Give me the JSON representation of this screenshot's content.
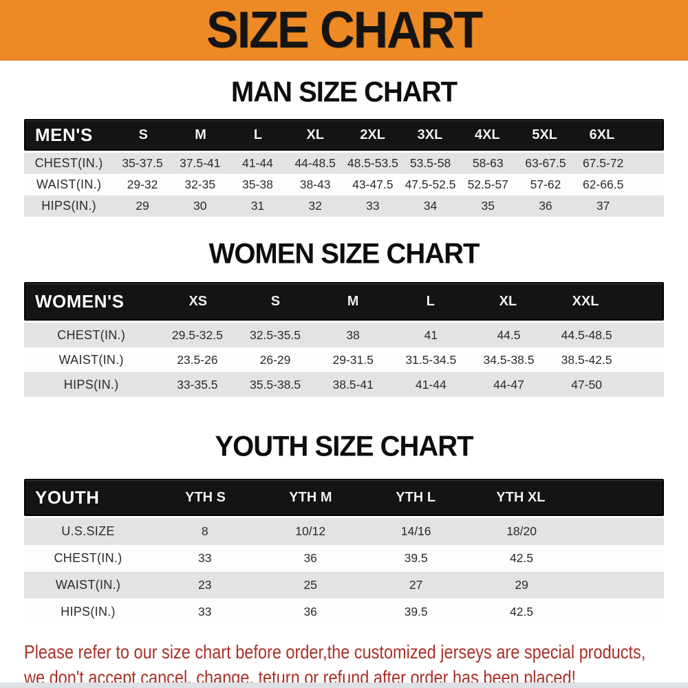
{
  "banner": {
    "title": "SIZE CHART",
    "bg_color": "#ee8a25"
  },
  "sections": [
    {
      "heading": "MAN SIZE CHART",
      "header_label": "MEN'S",
      "columns": [
        "S",
        "M",
        "L",
        "XL",
        "2XL",
        "3XL",
        "4XL",
        "5XL",
        "6XL"
      ],
      "rows": [
        {
          "label": "CHEST(IN.)",
          "values": [
            "35-37.5",
            "37.5-41",
            "41-44",
            "44-48.5",
            "48.5-53.5",
            "53.5-58",
            "58-63",
            "63-67.5",
            "67.5-72"
          ]
        },
        {
          "label": "WAIST(IN.)",
          "values": [
            "29-32",
            "32-35",
            "35-38",
            "38-43",
            "43-47.5",
            "47.5-52.5",
            "52.5-57",
            "57-62",
            "62-66.5"
          ]
        },
        {
          "label": "HIPS(IN.)",
          "values": [
            "29",
            "30",
            "31",
            "32",
            "33",
            "34",
            "35",
            "36",
            "37"
          ]
        }
      ]
    },
    {
      "heading": "WOMEN SIZE CHART",
      "header_label": "WOMEN'S",
      "columns": [
        "XS",
        "S",
        "M",
        "L",
        "XL",
        "XXL"
      ],
      "rows": [
        {
          "label": "CHEST(IN.)",
          "values": [
            "29.5-32.5",
            "32.5-35.5",
            "38",
            "41",
            "44.5",
            "44.5-48.5"
          ]
        },
        {
          "label": "WAIST(IN.)",
          "values": [
            "23.5-26",
            "26-29",
            "29-31.5",
            "31.5-34.5",
            "34.5-38.5",
            "38.5-42.5"
          ]
        },
        {
          "label": "HIPS(IN.)",
          "values": [
            "33-35.5",
            "35.5-38.5",
            "38.5-41",
            "41-44",
            "44-47",
            "47-50"
          ]
        }
      ]
    },
    {
      "heading": "YOUTH SIZE CHART",
      "header_label": "YOUTH",
      "columns": [
        "YTH S",
        "YTH M",
        "YTH L",
        "YTH XL"
      ],
      "rows": [
        {
          "label": "U.S.SIZE",
          "values": [
            "8",
            "10/12",
            "14/16",
            "18/20"
          ]
        },
        {
          "label": "CHEST(IN.)",
          "values": [
            "33",
            "36",
            "39.5",
            "42.5"
          ]
        },
        {
          "label": "WAIST(IN.)",
          "values": [
            "23",
            "25",
            "27",
            "29"
          ]
        },
        {
          "label": "HIPS(IN.)",
          "values": [
            "33",
            "36",
            "39.5",
            "42.5"
          ]
        }
      ]
    }
  ],
  "disclaimer": {
    "line1": "Please refer to our size chart before order,the customized jerseys are special products,",
    "line2": "we don't accept cancel, change, teturn or refund after order has been placed!",
    "text_color": "#a93027"
  },
  "style_colors": {
    "banner_orange": "#ee8a25",
    "bar_black": "#141414",
    "stripe_gray": "#e3e3e2"
  }
}
